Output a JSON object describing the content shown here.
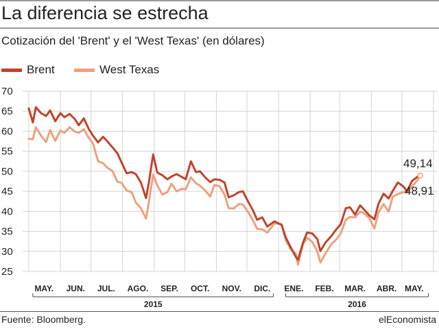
{
  "header": {
    "title": "La diferencia se estrecha",
    "subtitle": "Cotización del 'Brent' y el 'West Texas' (en dólares)"
  },
  "footer": {
    "source": "Fuente: Bloomberg.",
    "brand": "elEconomista"
  },
  "colors": {
    "brent": "#c0432b",
    "wti": "#eca17f",
    "grid": "#d3d3d3",
    "text": "#222222",
    "rule": "#9a9a9a"
  },
  "chart_data": {
    "type": "line",
    "title": "La diferencia se estrecha",
    "subtitle": "Cotización del 'Brent' y el 'West Texas' (en dólares)",
    "ylim": [
      25,
      70
    ],
    "y_ticks": [
      25,
      30,
      35,
      40,
      45,
      50,
      55,
      60,
      65,
      70
    ],
    "x_labels": [
      "MAY.",
      "JUN.",
      "JUL.",
      "AGO.",
      "SEP.",
      "OCT.",
      "NOV.",
      "DIC.",
      "ENE.",
      "FEB.",
      "MAR.",
      "ABR.",
      "MAY."
    ],
    "year_labels": [
      "2015",
      "2016"
    ],
    "grid": true,
    "legend_position": "top-left",
    "end_labels": {
      "brent": "49,14",
      "wti": "48,91"
    },
    "x": [
      "2015-05-01",
      "2015-05-05",
      "2015-05-08",
      "2015-05-13",
      "2015-05-18",
      "2015-05-22",
      "2015-05-27",
      "2015-06-01",
      "2015-06-05",
      "2015-06-10",
      "2015-06-15",
      "2015-06-19",
      "2015-06-24",
      "2015-06-29",
      "2015-07-03",
      "2015-07-08",
      "2015-07-13",
      "2015-07-17",
      "2015-07-22",
      "2015-07-27",
      "2015-07-31",
      "2015-08-05",
      "2015-08-10",
      "2015-08-14",
      "2015-08-19",
      "2015-08-24",
      "2015-08-27",
      "2015-08-31",
      "2015-09-04",
      "2015-09-09",
      "2015-09-14",
      "2015-09-18",
      "2015-09-23",
      "2015-09-28",
      "2015-10-02",
      "2015-10-07",
      "2015-10-12",
      "2015-10-16",
      "2015-10-21",
      "2015-10-26",
      "2015-10-30",
      "2015-11-04",
      "2015-11-09",
      "2015-11-13",
      "2015-11-18",
      "2015-11-23",
      "2015-11-27",
      "2015-12-02",
      "2015-12-07",
      "2015-12-11",
      "2015-12-16",
      "2015-12-21",
      "2015-12-28",
      "2016-01-04",
      "2016-01-08",
      "2016-01-13",
      "2016-01-18",
      "2016-01-20",
      "2016-01-25",
      "2016-01-29",
      "2016-02-03",
      "2016-02-08",
      "2016-02-11",
      "2016-02-16",
      "2016-02-22",
      "2016-02-26",
      "2016-03-02",
      "2016-03-07",
      "2016-03-11",
      "2016-03-16",
      "2016-03-21",
      "2016-03-25",
      "2016-03-30",
      "2016-04-04",
      "2016-04-08",
      "2016-04-13",
      "2016-04-18",
      "2016-04-22",
      "2016-04-27",
      "2016-05-02",
      "2016-05-06",
      "2016-05-11",
      "2016-05-16",
      "2016-05-19"
    ],
    "series": [
      {
        "name": "Brent",
        "values": [
          65.7,
          62.2,
          66.0,
          64.5,
          63.8,
          65.2,
          62.5,
          64.5,
          63.5,
          64.3,
          63.1,
          61.5,
          63.2,
          60.5,
          58.9,
          57.2,
          58.6,
          57.5,
          56.0,
          54.5,
          52.2,
          49.5,
          49.8,
          49.3,
          47.2,
          43.3,
          47.5,
          54.2,
          49.7,
          49.0,
          48.0,
          48.7,
          49.3,
          48.6,
          48.0,
          52.5,
          49.8,
          50.0,
          48.5,
          47.3,
          48.0,
          47.9,
          47.2,
          43.5,
          44.0,
          44.8,
          45.0,
          42.5,
          40.2,
          37.9,
          38.5,
          36.2,
          37.5,
          36.6,
          33.5,
          31.0,
          28.6,
          27.9,
          32.2,
          34.7,
          34.5,
          33.1,
          30.1,
          32.2,
          33.9,
          35.3,
          36.8,
          40.8,
          41.0,
          39.2,
          41.5,
          40.4,
          39.0,
          38.0,
          41.9,
          44.4,
          43.2,
          45.1,
          47.2,
          46.3,
          45.0,
          47.6,
          48.6,
          49.1
        ]
      },
      {
        "name": "West Texas",
        "values": [
          58.1,
          58.0,
          61.0,
          58.9,
          57.3,
          60.3,
          57.6,
          60.2,
          59.6,
          61.0,
          59.9,
          59.6,
          60.5,
          58.3,
          56.9,
          52.5,
          52.0,
          50.9,
          50.1,
          47.4,
          47.1,
          45.2,
          44.8,
          42.2,
          40.8,
          38.2,
          42.6,
          49.2,
          46.5,
          44.2,
          44.8,
          46.9,
          45.0,
          45.6,
          45.5,
          48.5,
          47.0,
          46.4,
          45.2,
          43.7,
          46.6,
          46.3,
          44.2,
          40.8,
          40.7,
          41.8,
          41.7,
          39.9,
          37.7,
          35.6,
          35.5,
          34.7,
          37.0,
          36.8,
          32.9,
          30.5,
          29.4,
          26.7,
          31.8,
          33.4,
          32.4,
          30.0,
          27.2,
          29.5,
          31.9,
          32.8,
          34.5,
          37.9,
          38.6,
          38.5,
          39.9,
          39.5,
          38.3,
          35.7,
          39.7,
          41.8,
          39.9,
          43.7,
          44.3,
          44.8,
          44.7,
          46.2,
          47.7,
          48.9
        ]
      }
    ]
  }
}
